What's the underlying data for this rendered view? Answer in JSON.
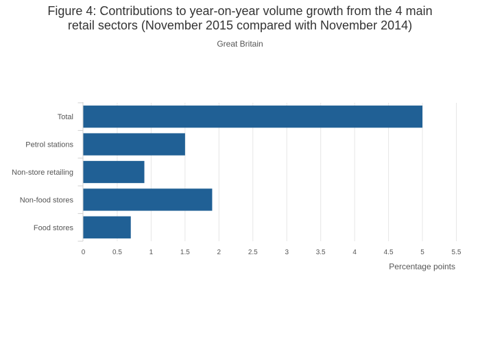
{
  "title_lines": [
    "Figure 4: Contributions to year-on-year volume growth from the 4 main",
    "retail sectors (November 2015 compared with November 2014)"
  ],
  "subtitle": "Great Britain",
  "chart_data": {
    "type": "bar",
    "orientation": "horizontal",
    "categories": [
      "Total",
      "Petrol stations",
      "Non-store retailing",
      "Non-food stores",
      "Food stores"
    ],
    "values": [
      5.0,
      1.5,
      0.9,
      1.9,
      0.7
    ],
    "xlabel": "Percentage points",
    "ylabel": "",
    "xlim": [
      0,
      5.5
    ],
    "x_ticks": [
      0,
      0.5,
      1,
      1.5,
      2,
      2.5,
      3,
      3.5,
      4,
      4.5,
      5,
      5.5
    ],
    "x_tick_labels": [
      "0",
      "0.5",
      "1",
      "1.5",
      "2",
      "2.5",
      "3",
      "3.5",
      "4",
      "4.5",
      "5",
      "5.5"
    ],
    "grid": true,
    "legend": "none",
    "bar_color": "#206095"
  }
}
